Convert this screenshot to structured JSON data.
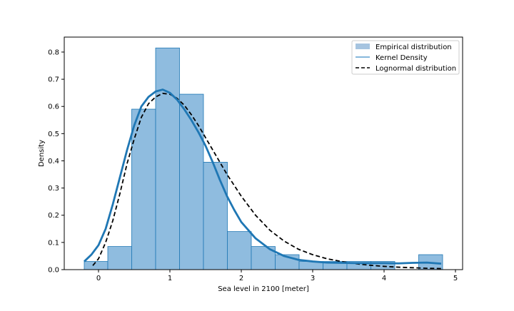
{
  "chart_data": {
    "type": "histogram",
    "xlabel": "Sea level in 2100 [meter]",
    "ylabel": "Density",
    "xlim": [
      -0.48,
      5.1
    ],
    "ylim": [
      0,
      0.855
    ],
    "x_ticks": [
      0,
      1,
      2,
      3,
      4,
      5
    ],
    "x_tick_labels": [
      "0",
      "1",
      "2",
      "3",
      "4",
      "5"
    ],
    "y_ticks": [
      0.0,
      0.1,
      0.2,
      0.3,
      0.4,
      0.5,
      0.6,
      0.7,
      0.8
    ],
    "y_tick_labels": [
      "0.0",
      "0.1",
      "0.2",
      "0.3",
      "0.4",
      "0.5",
      "0.6",
      "0.7",
      "0.8"
    ],
    "legend_position": "top-right",
    "series": [
      {
        "name": "Empirical distribution",
        "kind": "histogram",
        "color": "#8fbcdf",
        "edge_color": "#1f77b4",
        "bin_edges": [
          -0.2,
          0.13,
          0.465,
          0.8,
          1.135,
          1.47,
          1.805,
          2.14,
          2.475,
          2.81,
          3.145,
          3.48,
          3.815,
          4.15,
          4.485,
          4.82
        ],
        "values": [
          0.03,
          0.085,
          0.59,
          0.815,
          0.645,
          0.395,
          0.14,
          0.085,
          0.055,
          0.03,
          0.03,
          0.03,
          0.03,
          0.0,
          0.055
        ]
      },
      {
        "name": "Kernel Density",
        "kind": "line",
        "color": "#1f77b4",
        "x": [
          -0.2,
          -0.1,
          0.0,
          0.1,
          0.2,
          0.3,
          0.4,
          0.5,
          0.6,
          0.7,
          0.8,
          0.9,
          1.0,
          1.1,
          1.2,
          1.3,
          1.4,
          1.5,
          1.6,
          1.7,
          1.8,
          1.9,
          2.0,
          2.2,
          2.4,
          2.6,
          2.8,
          3.0,
          3.2,
          3.4,
          3.6,
          3.8,
          4.0,
          4.2,
          4.4,
          4.6,
          4.8
        ],
        "y": [
          0.03,
          0.055,
          0.09,
          0.15,
          0.24,
          0.34,
          0.44,
          0.53,
          0.6,
          0.635,
          0.655,
          0.662,
          0.65,
          0.625,
          0.59,
          0.55,
          0.505,
          0.455,
          0.395,
          0.33,
          0.27,
          0.22,
          0.175,
          0.115,
          0.075,
          0.05,
          0.036,
          0.03,
          0.026,
          0.025,
          0.024,
          0.024,
          0.024,
          0.023,
          0.025,
          0.026,
          0.022
        ]
      },
      {
        "name": "Lognormal distribution",
        "kind": "line",
        "color": "#000000",
        "dashed": true,
        "x": [
          -0.08,
          0.0,
          0.1,
          0.2,
          0.3,
          0.4,
          0.5,
          0.6,
          0.7,
          0.8,
          0.9,
          1.0,
          1.1,
          1.2,
          1.3,
          1.4,
          1.5,
          1.6,
          1.7,
          1.8,
          1.9,
          2.0,
          2.2,
          2.4,
          2.6,
          2.8,
          3.0,
          3.2,
          3.4,
          3.6,
          3.8,
          4.0,
          4.2,
          4.4,
          4.6,
          4.8
        ],
        "y": [
          0.015,
          0.04,
          0.1,
          0.18,
          0.28,
          0.39,
          0.48,
          0.56,
          0.61,
          0.635,
          0.648,
          0.645,
          0.63,
          0.605,
          0.57,
          0.53,
          0.485,
          0.44,
          0.395,
          0.35,
          0.31,
          0.27,
          0.2,
          0.145,
          0.105,
          0.075,
          0.055,
          0.04,
          0.03,
          0.022,
          0.016,
          0.012,
          0.009,
          0.007,
          0.005,
          0.004
        ]
      }
    ]
  }
}
